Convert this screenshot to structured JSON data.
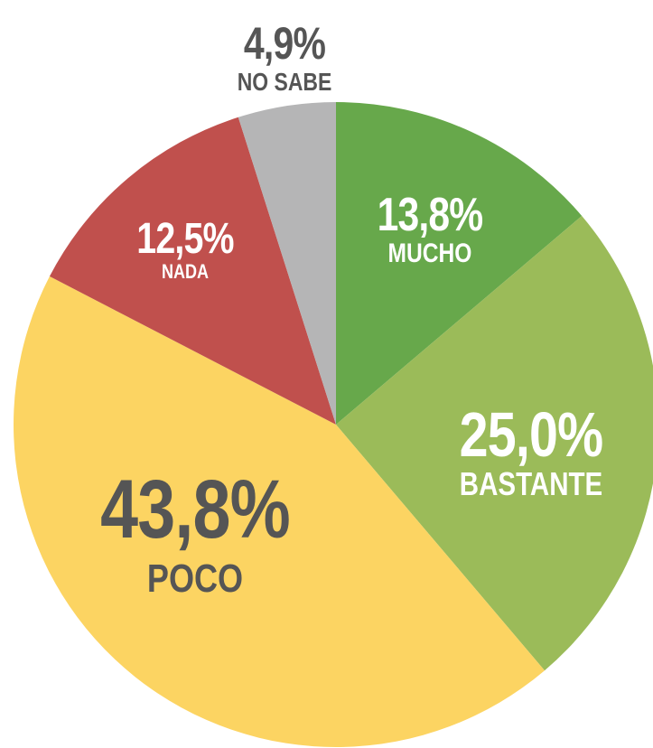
{
  "chart_data": {
    "type": "pie",
    "categories": [
      "MUCHO",
      "BASTANTE",
      "POCO",
      "NADA",
      "NO SABE"
    ],
    "values": [
      13.8,
      25.0,
      43.8,
      12.5,
      4.9
    ],
    "value_labels": [
      "13,8%",
      "25,0%",
      "43,8%",
      "12,5%",
      "4,9%"
    ],
    "colors": [
      "#67a84b",
      "#9bbb59",
      "#fcd462",
      "#c0504d",
      "#b5b5b6"
    ]
  }
}
